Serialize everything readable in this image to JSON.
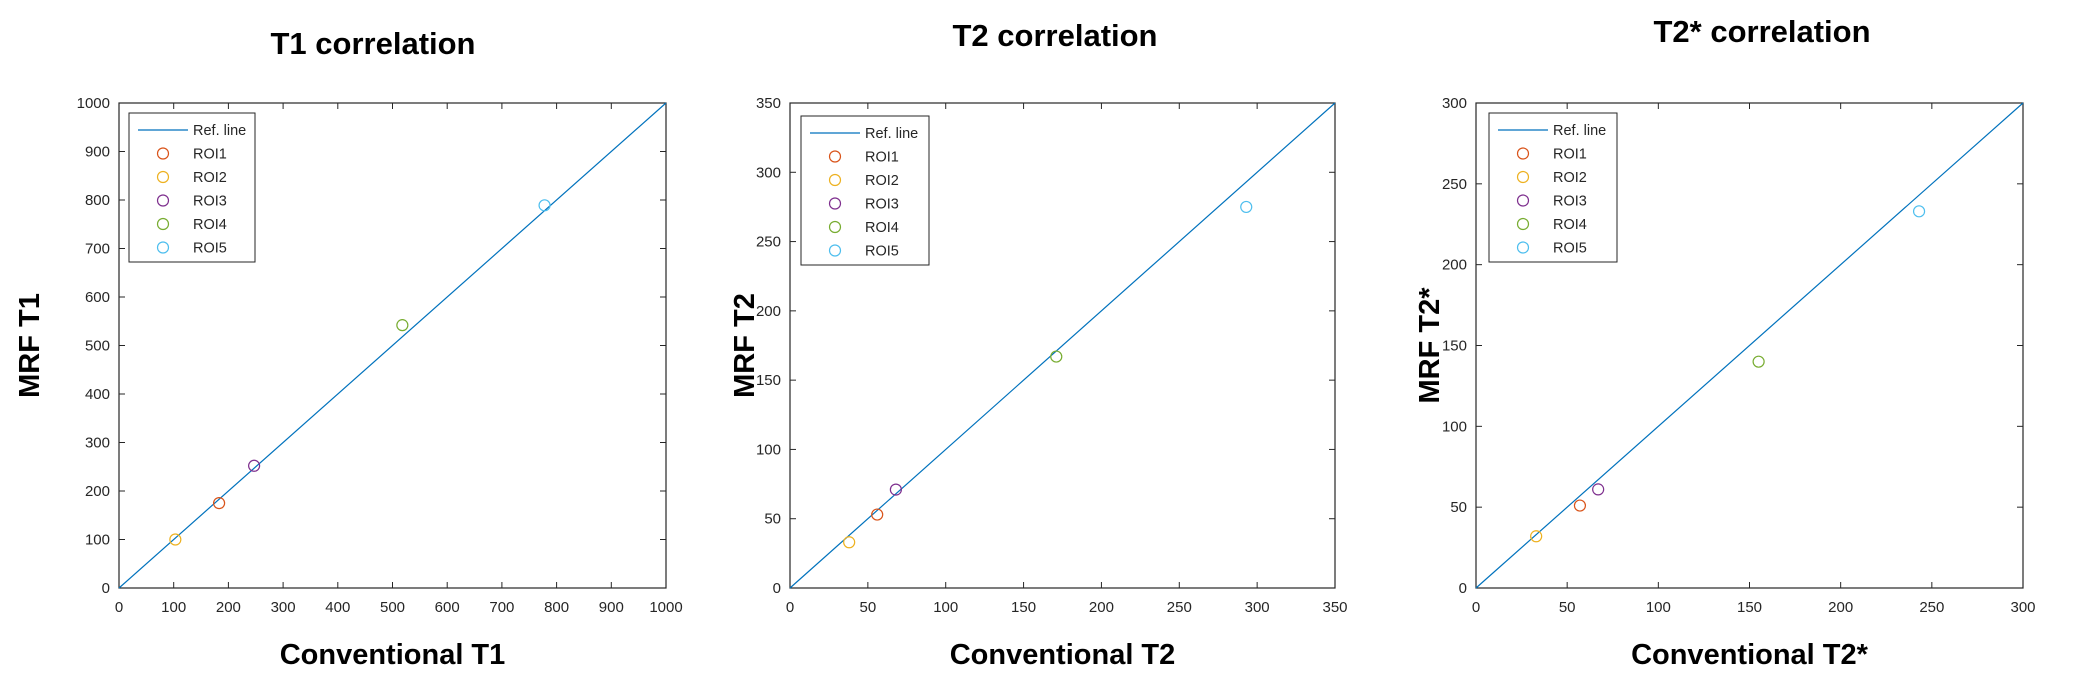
{
  "series_colors": {
    "Ref. line": "#0072BD",
    "ROI1": "#D95319",
    "ROI2": "#EDB120",
    "ROI3": "#7E2F8E",
    "ROI4": "#77AC30",
    "ROI5": "#4DBEEE"
  },
  "chart_data": [
    {
      "type": "scatter",
      "title": "T1 correlation",
      "xlabel": "Conventional T1",
      "ylabel": "MRF T1",
      "xlim": [
        0,
        1000
      ],
      "ylim": [
        0,
        1000
      ],
      "xticks": [
        0,
        100,
        200,
        300,
        400,
        500,
        600,
        700,
        800,
        900,
        1000
      ],
      "yticks": [
        0,
        100,
        200,
        300,
        400,
        500,
        600,
        700,
        800,
        900,
        1000
      ],
      "grid": false,
      "legend_position": "top-left",
      "reference_line": {
        "name": "Ref. line",
        "x": [
          0,
          1000
        ],
        "y": [
          0,
          1000
        ]
      },
      "series": [
        {
          "name": "ROI1",
          "x": 183,
          "y": 175
        },
        {
          "name": "ROI2",
          "x": 103,
          "y": 100
        },
        {
          "name": "ROI3",
          "x": 247,
          "y": 252
        },
        {
          "name": "ROI4",
          "x": 518,
          "y": 542
        },
        {
          "name": "ROI5",
          "x": 778,
          "y": 789
        }
      ]
    },
    {
      "type": "scatter",
      "title": "T2 correlation",
      "xlabel": "Conventional T2",
      "ylabel": "MRF T2",
      "xlim": [
        0,
        350
      ],
      "ylim": [
        0,
        350
      ],
      "xticks": [
        0,
        50,
        100,
        150,
        200,
        250,
        300,
        350
      ],
      "yticks": [
        0,
        50,
        100,
        150,
        200,
        250,
        300,
        350
      ],
      "grid": false,
      "legend_position": "top-left",
      "reference_line": {
        "name": "Ref. line",
        "x": [
          0,
          350
        ],
        "y": [
          0,
          350
        ]
      },
      "series": [
        {
          "name": "ROI1",
          "x": 56,
          "y": 53
        },
        {
          "name": "ROI2",
          "x": 38,
          "y": 33
        },
        {
          "name": "ROI3",
          "x": 68,
          "y": 71
        },
        {
          "name": "ROI4",
          "x": 171,
          "y": 167
        },
        {
          "name": "ROI5",
          "x": 293,
          "y": 275
        }
      ]
    },
    {
      "type": "scatter",
      "title": "T2* correlation",
      "xlabel": "Conventional T2*",
      "ylabel": "MRF T2*",
      "xlim": [
        0,
        300
      ],
      "ylim": [
        0,
        300
      ],
      "xticks": [
        0,
        50,
        100,
        150,
        200,
        250,
        300
      ],
      "yticks": [
        0,
        50,
        100,
        150,
        200,
        250,
        300
      ],
      "grid": false,
      "legend_position": "top-left",
      "reference_line": {
        "name": "Ref. line",
        "x": [
          0,
          300
        ],
        "y": [
          0,
          300
        ]
      },
      "series": [
        {
          "name": "ROI1",
          "x": 57,
          "y": 51
        },
        {
          "name": "ROI2",
          "x": 33,
          "y": 32
        },
        {
          "name": "ROI3",
          "x": 67,
          "y": 61
        },
        {
          "name": "ROI4",
          "x": 155,
          "y": 140
        },
        {
          "name": "ROI5",
          "x": 243,
          "y": 233
        }
      ]
    }
  ]
}
